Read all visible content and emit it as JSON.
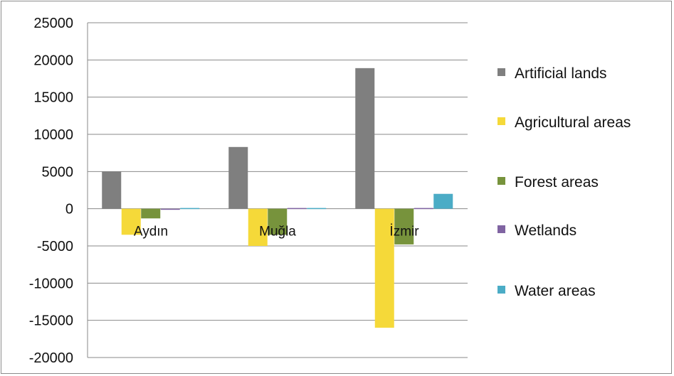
{
  "chart_data": {
    "type": "bar",
    "categories": [
      "Aydın",
      "Muğla",
      "İzmir"
    ],
    "series": [
      {
        "name": "Artificial lands",
        "color": "#7f7f7f",
        "values": [
          5000,
          8300,
          18900
        ]
      },
      {
        "name": "Agricultural areas",
        "color": "#f5d939",
        "values": [
          -3500,
          -5000,
          -16000
        ]
      },
      {
        "name": "Forest areas",
        "color": "#77933c",
        "values": [
          -1300,
          -3500,
          -4800
        ]
      },
      {
        "name": "Wetlands",
        "color": "#8064a2",
        "values": [
          -100,
          100,
          100
        ]
      },
      {
        "name": "Water areas",
        "color": "#4bacc6",
        "values": [
          100,
          100,
          2000
        ]
      }
    ],
    "ylim": [
      -20000,
      25000
    ],
    "yticks": [
      25000,
      20000,
      15000,
      10000,
      5000,
      0,
      -5000,
      -10000,
      -15000,
      -20000
    ],
    "grid": true,
    "legend": "right"
  }
}
